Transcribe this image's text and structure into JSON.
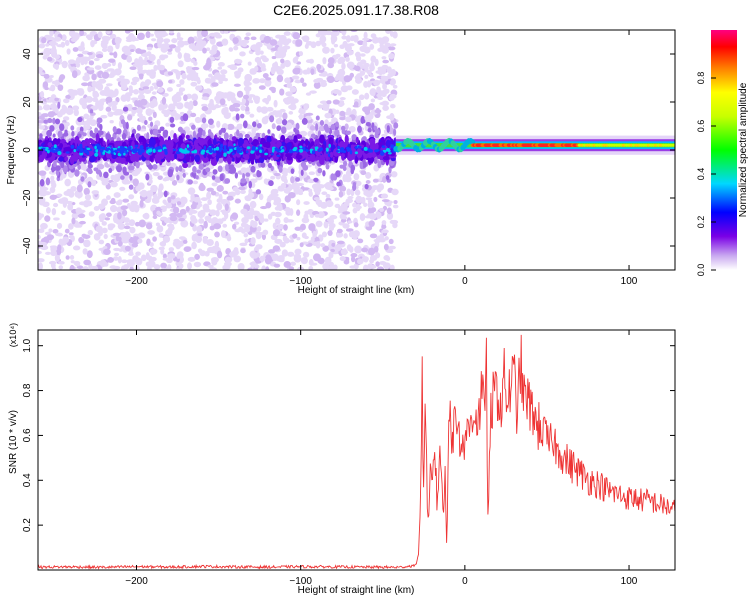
{
  "figure": {
    "title": "C2E6.2025.091.17.38.R08"
  },
  "chart_data": [
    {
      "type": "heatmap",
      "xlabel": "Height of straight line (km)",
      "ylabel": "Frequency (Hz)",
      "xlim": [
        -260,
        128
      ],
      "ylim": [
        -50,
        50
      ],
      "xticks": [
        -200,
        -100,
        0,
        100
      ],
      "yticks": [
        -40,
        -20,
        0,
        20,
        40
      ],
      "colorbar": {
        "label": "Normalized spectral amplitude",
        "range": [
          0.0,
          1.0
        ],
        "ticks": [
          0.0,
          0.2,
          0.4,
          0.6,
          0.8
        ],
        "colormap": "rainbow (violet-blue-cyan-green-yellow-red-magenta)"
      },
      "features": {
        "noise_region_x": [
          -260,
          -42
        ],
        "noise_core_freq_band": [
          -10,
          10
        ],
        "noise_scatter_freq_band": [
          -50,
          50
        ],
        "signal_start_x": -42,
        "signal_line_freq": 2,
        "signal_peak_x_range": [
          5,
          70
        ]
      }
    },
    {
      "type": "line",
      "xlabel": "Height of straight line (km)",
      "ylabel": "SNR (10 * v/v)",
      "y_multiplier": "(x10⁴)",
      "xlim": [
        -260,
        128
      ],
      "ylim": [
        0,
        1.07
      ],
      "xticks": [
        -200,
        -100,
        0,
        100
      ],
      "yticks": [
        0.2,
        0.4,
        0.6,
        0.8,
        1.0
      ],
      "color": "#ee3333",
      "series": [
        {
          "x": [
            -260,
            -240,
            -220,
            -200,
            -180,
            -160,
            -140,
            -120,
            -100,
            -80,
            -60,
            -40,
            -30,
            -28,
            -27,
            -26,
            -25,
            -24,
            -23,
            -22,
            -21,
            -20,
            -19,
            -18,
            -17,
            -16,
            -15,
            -14,
            -13,
            -12,
            -11,
            -10,
            -9,
            -8,
            -7,
            -6,
            -5,
            -4,
            -3,
            -2,
            -1,
            0,
            2,
            4,
            6,
            8,
            10,
            12,
            13,
            14,
            16,
            18,
            20,
            22,
            24,
            26,
            28,
            30,
            32,
            34,
            36,
            38,
            40,
            42,
            44,
            46,
            48,
            50,
            52,
            54,
            56,
            58,
            60,
            64,
            68,
            72,
            76,
            80,
            84,
            88,
            92,
            96,
            100,
            104,
            108,
            112,
            116,
            120,
            124,
            128
          ],
          "values": [
            0.013,
            0.014,
            0.012,
            0.015,
            0.013,
            0.016,
            0.014,
            0.013,
            0.015,
            0.014,
            0.013,
            0.012,
            0.02,
            0.08,
            0.35,
            0.83,
            0.3,
            0.88,
            0.25,
            0.2,
            0.45,
            0.35,
            0.55,
            0.5,
            0.3,
            0.4,
            0.6,
            0.35,
            0.25,
            0.45,
            0.05,
            0.7,
            0.78,
            0.6,
            0.55,
            0.72,
            0.65,
            0.7,
            0.55,
            0.63,
            0.5,
            0.62,
            0.6,
            0.68,
            0.72,
            0.65,
            0.78,
            0.7,
            1.07,
            0.2,
            0.72,
            0.78,
            0.8,
            0.72,
            0.85,
            0.75,
            0.82,
            0.86,
            0.7,
            0.93,
            0.75,
            0.78,
            0.7,
            0.72,
            0.62,
            0.66,
            0.6,
            0.58,
            0.55,
            0.6,
            0.52,
            0.55,
            0.5,
            0.47,
            0.45,
            0.42,
            0.4,
            0.39,
            0.37,
            0.35,
            0.34,
            0.33,
            0.32,
            0.32,
            0.31,
            0.31,
            0.3,
            0.29,
            0.28,
            0.27
          ]
        }
      ]
    }
  ]
}
